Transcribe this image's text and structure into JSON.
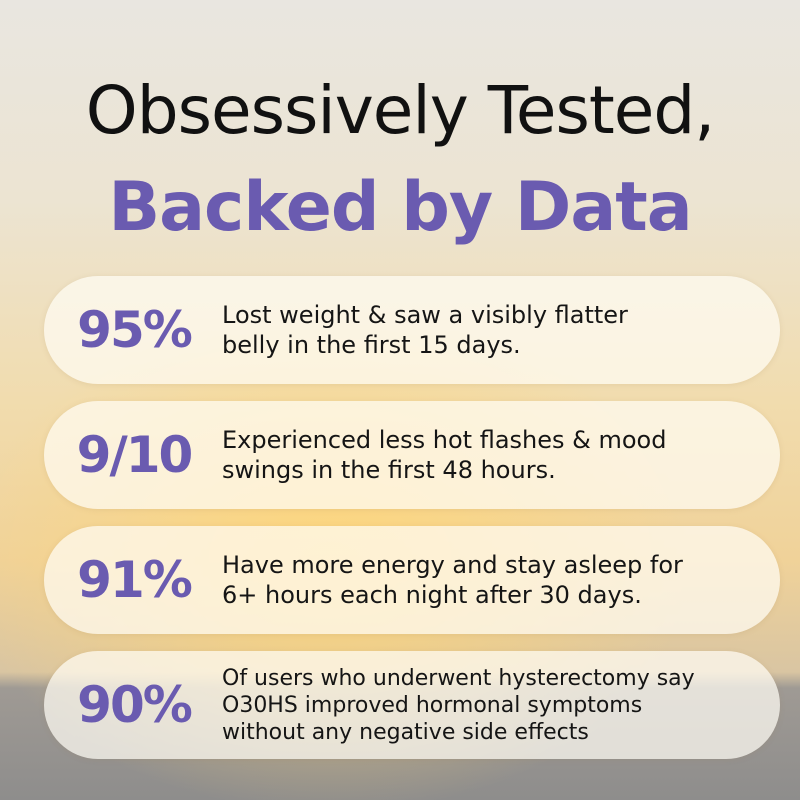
{
  "header": {
    "title_line1": "Obsessively Tested,",
    "title_line2": "Backed by Data"
  },
  "stats": [
    {
      "figure": "95%",
      "lines": [
        "Lost weight & saw a visibly flatter",
        "belly in the first 15 days."
      ]
    },
    {
      "figure": "9/10",
      "lines": [
        "Experienced less hot flashes & mood",
        "swings in the first 48 hours."
      ]
    },
    {
      "figure": "91%",
      "lines": [
        "Have more energy and stay asleep for",
        "6+ hours each night after 30 days."
      ]
    },
    {
      "figure": "90%",
      "lines": [
        "Of users who underwent hysterectomy say",
        "O30HS improved hormonal symptoms",
        "without any negative side effects"
      ]
    }
  ]
}
